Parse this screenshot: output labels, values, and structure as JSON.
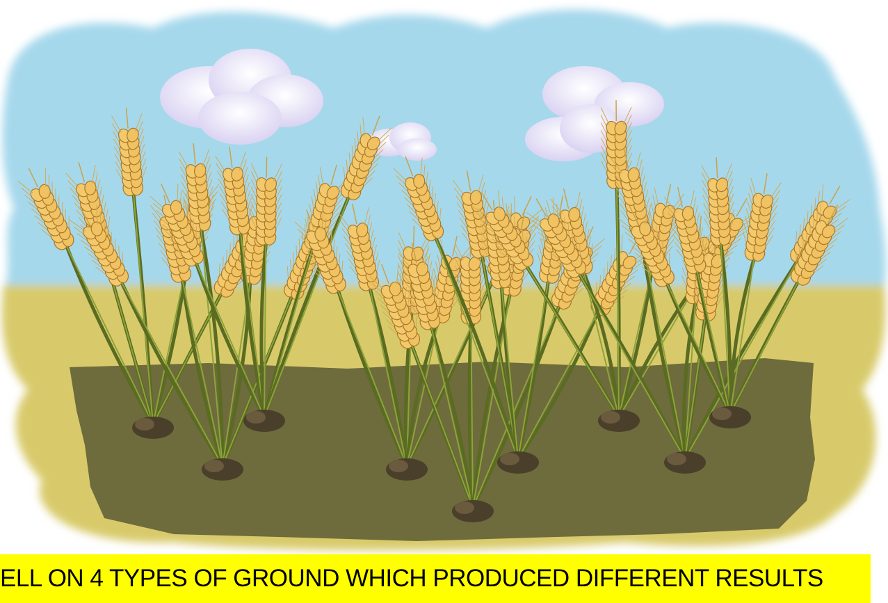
{
  "caption": "ELL ON 4 TYPES OF GROUND WHICH PRODUCED DIFFERENT RESULTS"
}
